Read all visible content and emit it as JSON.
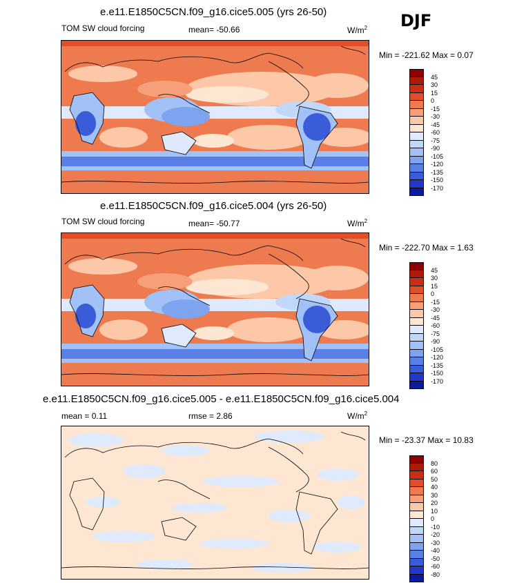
{
  "season": "DJF",
  "panels": [
    {
      "title": "e.e11.E1850C5CN.f09_g16.cice5.005 (yrs 26-50)",
      "variable": "TOM SW cloud forcing",
      "stat": "mean= -50.66",
      "units": "W/m",
      "units_sup": "2",
      "minmax": "Min = -221.62 Max =   0.07",
      "colorbar": [
        "45",
        "30",
        "15",
        "0",
        "-15",
        "-30",
        "-45",
        "-60",
        "-75",
        "-90",
        "-105",
        "-120",
        "-135",
        "-150",
        "-170"
      ],
      "colors": [
        "#8b0000",
        "#b01a0a",
        "#cc2e14",
        "#e04e2a",
        "#ee7a50",
        "#f6a07a",
        "#fcc8a8",
        "#fde6d2",
        "#dfeafc",
        "#c2d8fb",
        "#a2c1f7",
        "#7ea4f0",
        "#5a80e6",
        "#3a5cd9",
        "#2238c6",
        "#0d1a9c"
      ]
    },
    {
      "title": "e.e11.E1850C5CN.f09_g16.cice5.004 (yrs 26-50)",
      "variable": "TOM SW cloud forcing",
      "stat": "mean= -50.77",
      "units": "W/m",
      "units_sup": "2",
      "minmax": "Min = -222.70 Max =   1.63",
      "colorbar": [
        "45",
        "30",
        "15",
        "0",
        "-15",
        "-30",
        "-45",
        "-60",
        "-75",
        "-90",
        "-105",
        "-120",
        "-135",
        "-150",
        "-170"
      ],
      "colors": [
        "#8b0000",
        "#b01a0a",
        "#cc2e14",
        "#e04e2a",
        "#ee7a50",
        "#f6a07a",
        "#fcc8a8",
        "#fde6d2",
        "#dfeafc",
        "#c2d8fb",
        "#a2c1f7",
        "#7ea4f0",
        "#5a80e6",
        "#3a5cd9",
        "#2238c6",
        "#0d1a9c"
      ]
    },
    {
      "title": "e.e11.E1850C5CN.f09_g16.cice5.005 - e.e11.E1850C5CN.f09_g16.cice5.004",
      "stat": "mean =   0.11",
      "rmse": "rmse =   2.86",
      "units": "W/m",
      "units_sup": "2",
      "minmax": "Min = -23.37 Max =  10.83",
      "colorbar": [
        "80",
        "60",
        "50",
        "40",
        "30",
        "20",
        "10",
        "0",
        "-10",
        "-20",
        "-30",
        "-40",
        "-50",
        "-60",
        "-80"
      ],
      "colors": [
        "#8b0000",
        "#b01a0a",
        "#cc2e14",
        "#e04e2a",
        "#ee7a50",
        "#f6a07a",
        "#fcc8a8",
        "#fde6d2",
        "#dfeafc",
        "#c2d8fb",
        "#a2c1f7",
        "#7ea4f0",
        "#5a80e6",
        "#3a5cd9",
        "#2238c6",
        "#0d1a9c"
      ]
    }
  ]
}
